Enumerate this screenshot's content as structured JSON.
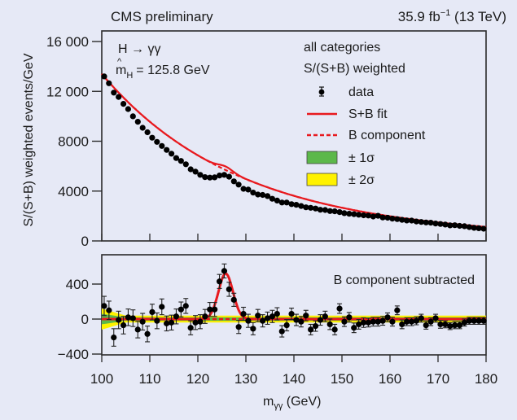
{
  "chart_data": [
    {
      "type": "scatter",
      "panel": "upper",
      "title_left": "CMS preliminary",
      "title_right_lumi": "35.9 fb",
      "title_right_exp": "−1",
      "title_right_energy": " (13 TeV)",
      "annotation_process": "H → γγ",
      "annotation_mass": "= 125.8 GeV",
      "annotation_mass_symbol": "m",
      "annotation_mass_sub": "H",
      "annotation_categories": "all categories",
      "annotation_weighting": "S/(S+B) weighted",
      "ylabel": "S/(S+B) weighted events/GeV",
      "xlim": [
        100,
        180
      ],
      "ylim": [
        0,
        17000
      ],
      "yticks": [
        0,
        4000,
        8000,
        12000,
        16000
      ],
      "ytick_labels": [
        "0",
        "4000",
        "8000",
        "12 000",
        "16 000"
      ],
      "legend": {
        "placement": "top-right",
        "entries": [
          {
            "label": "data",
            "style": "marker"
          },
          {
            "label": "S+B fit",
            "style": "solid-line",
            "color": "#e8191e"
          },
          {
            "label": "B component",
            "style": "dashed-line",
            "color": "#e8191e"
          },
          {
            "label": "± 1σ",
            "style": "box",
            "color": "#5cb84a"
          },
          {
            "label": "± 2σ",
            "style": "box",
            "color": "#fff200"
          }
        ]
      },
      "x": [
        100.5,
        101.5,
        102.5,
        103.5,
        104.5,
        105.5,
        106.5,
        107.5,
        108.5,
        109.5,
        110.5,
        111.5,
        112.5,
        113.5,
        114.5,
        115.5,
        116.5,
        117.5,
        118.5,
        119.5,
        120.5,
        121.5,
        122.5,
        123.5,
        124.5,
        125.5,
        126.5,
        127.5,
        128.5,
        129.5,
        130.5,
        131.5,
        132.5,
        133.5,
        134.5,
        135.5,
        136.5,
        137.5,
        138.5,
        139.5,
        140.5,
        141.5,
        142.5,
        143.5,
        144.5,
        145.5,
        146.5,
        147.5,
        148.5,
        149.5,
        150.5,
        151.5,
        152.5,
        153.5,
        154.5,
        155.5,
        156.5,
        157.5,
        158.5,
        159.5,
        160.5,
        161.5,
        162.5,
        163.5,
        164.5,
        165.5,
        166.5,
        167.5,
        168.5,
        169.5,
        170.5,
        171.5,
        172.5,
        173.5,
        174.5,
        175.5,
        176.5,
        177.5,
        178.5,
        179.5
      ],
      "values": [
        13200,
        12650,
        11900,
        11550,
        11000,
        10580,
        10000,
        9560,
        9080,
        8720,
        8280,
        7950,
        7620,
        7300,
        7000,
        6650,
        6420,
        6150,
        5750,
        5560,
        5300,
        5120,
        5080,
        5100,
        5250,
        5300,
        5150,
        4780,
        4520,
        4180,
        4120,
        3880,
        3720,
        3690,
        3600,
        3380,
        3240,
        3080,
        3080,
        2950,
        2900,
        2800,
        2700,
        2660,
        2600,
        2500,
        2480,
        2400,
        2380,
        2310,
        2230,
        2180,
        2150,
        2100,
        2060,
        2040,
        1960,
        2020,
        1880,
        1860,
        1790,
        1750,
        1690,
        1640,
        1630,
        1560,
        1520,
        1480,
        1460,
        1400,
        1360,
        1310,
        1250,
        1260,
        1210,
        1180,
        1110,
        1050,
        1020,
        980
      ],
      "series": [
        {
          "name": "S+B fit",
          "color": "#e8191e",
          "style": "solid"
        },
        {
          "name": "B component",
          "color": "#e8191e",
          "style": "dashed"
        }
      ]
    },
    {
      "type": "scatter",
      "panel": "lower",
      "annotation": "B component subtracted",
      "xlabel": "m",
      "xlabel_sub": "γγ",
      "xlabel_unit": " (GeV)",
      "xlim": [
        100,
        180
      ],
      "ylim": [
        -450,
        700
      ],
      "yticks": [
        -400,
        0,
        400
      ],
      "ytick_labels": [
        "−400",
        "0",
        "400"
      ],
      "xticks": [
        100,
        110,
        120,
        130,
        140,
        150,
        160,
        170,
        180
      ],
      "xtick_labels": [
        "100",
        "110",
        "120",
        "130",
        "140",
        "150",
        "160",
        "170",
        "180"
      ],
      "x": [
        100.5,
        101.5,
        102.5,
        103.5,
        104.5,
        105.5,
        106.5,
        107.5,
        108.5,
        109.5,
        110.5,
        111.5,
        112.5,
        113.5,
        114.5,
        115.5,
        116.5,
        117.5,
        118.5,
        119.5,
        120.5,
        121.5,
        122.5,
        123.5,
        124.5,
        125.5,
        126.5,
        127.5,
        128.5,
        129.5,
        130.5,
        131.5,
        132.5,
        133.5,
        134.5,
        135.5,
        136.5,
        137.5,
        138.5,
        139.5,
        140.5,
        141.5,
        142.5,
        143.5,
        144.5,
        145.5,
        146.5,
        147.5,
        148.5,
        149.5,
        150.5,
        151.5,
        152.5,
        153.5,
        154.5,
        155.5,
        156.5,
        157.5,
        158.5,
        159.5,
        160.5,
        161.5,
        162.5,
        163.5,
        164.5,
        165.5,
        166.5,
        167.5,
        168.5,
        169.5,
        170.5,
        171.5,
        172.5,
        173.5,
        174.5,
        175.5,
        176.5,
        177.5,
        178.5,
        179.5
      ],
      "values": [
        150,
        100,
        -210,
        -10,
        -70,
        20,
        10,
        -120,
        -30,
        -170,
        80,
        -20,
        140,
        -50,
        -40,
        30,
        110,
        150,
        -100,
        -40,
        -30,
        30,
        110,
        110,
        430,
        550,
        340,
        220,
        -90,
        60,
        -20,
        -110,
        40,
        -20,
        10,
        30,
        60,
        -140,
        -70,
        60,
        -10,
        -30,
        40,
        -120,
        -80,
        -10,
        30,
        -60,
        -120,
        120,
        -30,
        20,
        -100,
        -60,
        -40,
        -40,
        -30,
        -30,
        -20,
        20,
        -30,
        100,
        -60,
        -30,
        -30,
        -20,
        10,
        -70,
        -30,
        10,
        -60,
        -60,
        -80,
        -70,
        -70,
        -40,
        -20,
        -20,
        -20,
        -20
      ],
      "errors": [
        110,
        105,
        100,
        100,
        100,
        95,
        95,
        95,
        95,
        90,
        90,
        90,
        90,
        85,
        85,
        85,
        85,
        85,
        80,
        80,
        80,
        80,
        80,
        80,
        80,
        80,
        80,
        75,
        75,
        75,
        75,
        70,
        70,
        70,
        70,
        70,
        70,
        65,
        65,
        65,
        65,
        60,
        60,
        60,
        60,
        60,
        60,
        60,
        60,
        55,
        55,
        55,
        55,
        55,
        55,
        50,
        50,
        50,
        50,
        50,
        50,
        50,
        50,
        45,
        45,
        45,
        45,
        45,
        45,
        45,
        45,
        40,
        40,
        40,
        40,
        40,
        40,
        40,
        40,
        40
      ],
      "signal_peak": {
        "mass": 125.8,
        "amplitude": 520,
        "width_sigma": 1.5
      },
      "band_1sigma_color": "#5cb84a",
      "band_2sigma_color": "#fff200"
    }
  ]
}
